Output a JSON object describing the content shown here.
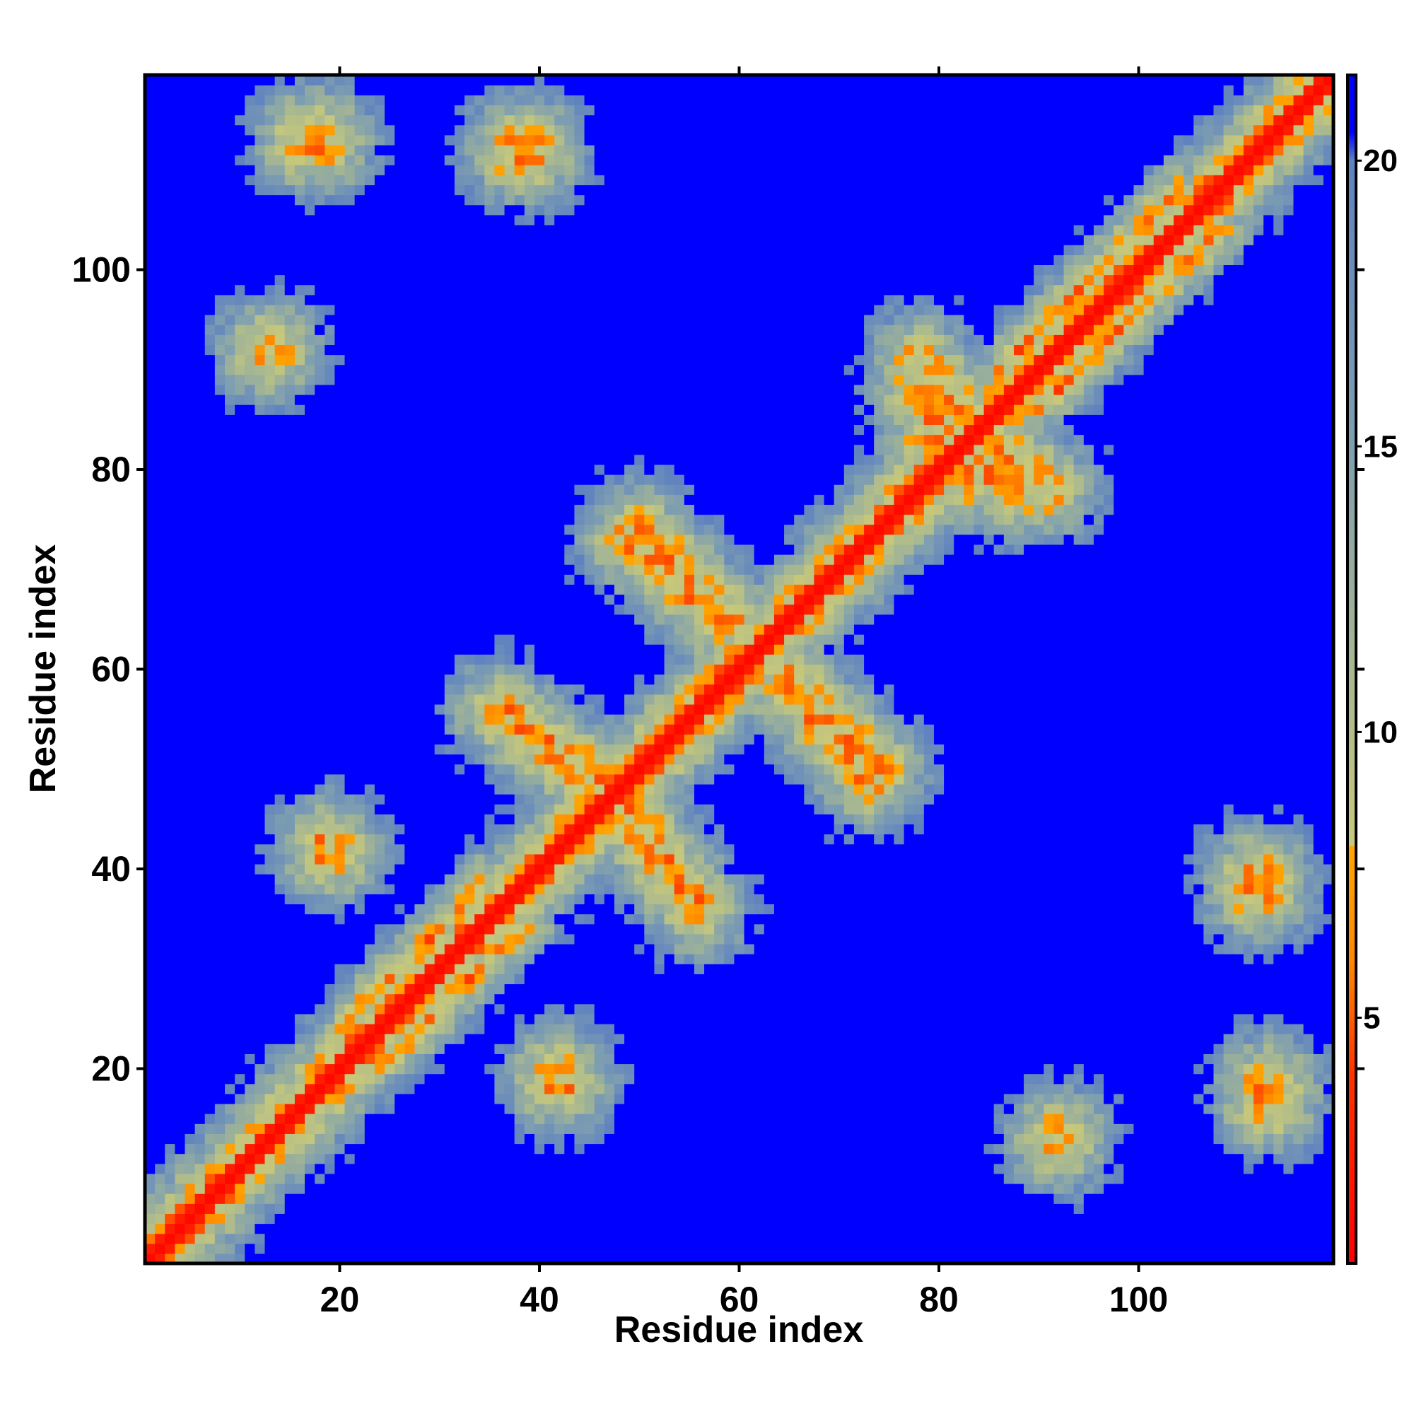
{
  "chart_data": {
    "type": "heatmap",
    "title": "",
    "xlabel": "Residue index",
    "ylabel": "Residue index",
    "n_residues": 119,
    "xlim": [
      0.5,
      119.5
    ],
    "ylim": [
      0.5,
      119.5
    ],
    "x_ticks": [
      20,
      40,
      60,
      80,
      100
    ],
    "y_ticks": [
      20,
      40,
      60,
      80,
      100
    ],
    "x_tick_labels": [
      "20",
      "40",
      "60",
      "80",
      "100"
    ],
    "y_tick_labels": [
      "20",
      "40",
      "60",
      "80",
      "100"
    ],
    "colorbar": {
      "range": [
        0.7,
        21.5
      ],
      "ticks": [
        5,
        10,
        15,
        20
      ],
      "tick_labels": [
        "5",
        "10",
        "15",
        "20"
      ],
      "stops": [
        {
          "value": 0.7,
          "color": "#ff0000"
        },
        {
          "value": 4.0,
          "color": "#ff3300"
        },
        {
          "value": 6.0,
          "color": "#ff8800"
        },
        {
          "value": 8.0,
          "color": "#ffa500"
        },
        {
          "value": 8.01,
          "color": "#c8c87a"
        },
        {
          "value": 11.0,
          "color": "#a8b890"
        },
        {
          "value": 15.0,
          "color": "#7f9fb0"
        },
        {
          "value": 20.0,
          "color": "#5f82c0"
        },
        {
          "value": 20.5,
          "color": "#0000ff"
        },
        {
          "value": 21.5,
          "color": "#0000ff"
        }
      ]
    },
    "value_description": "Pairwise residue distance matrix (symmetric). Diagonal ~1-3 (red), contact blobs ~6-8 (orange), near shell 10-19 (green-gray/steel), far pairs >20 (blue).",
    "contact_features": [
      {
        "kind": "diagonal",
        "range": [
          1,
          119
        ],
        "value": 1.5
      },
      {
        "kind": "parallel_band",
        "range": [
          20,
          34
        ],
        "offset": 4,
        "value": 6.5
      },
      {
        "kind": "parallel_band",
        "range": [
          86,
          104
        ],
        "offset": 4,
        "value": 6.5
      },
      {
        "kind": "antiparallel_strand",
        "from": [
          45,
          50
        ],
        "to": [
          56,
          36
        ],
        "value": 6.8
      },
      {
        "kind": "antiparallel_strand",
        "from": [
          50,
          74
        ],
        "to": [
          58,
          65
        ],
        "value": 6.8
      },
      {
        "kind": "antiparallel_strand",
        "from": [
          65,
          59
        ],
        "to": [
          73,
          49
        ],
        "value": 6.8
      },
      {
        "kind": "antiparallel_strand",
        "from": [
          78,
          88
        ],
        "to": [
          83,
          79
        ],
        "value": 7.0
      },
      {
        "kind": "antiparallel_strand",
        "from": [
          84,
          84
        ],
        "to": [
          91,
          78
        ],
        "value": 7.0
      },
      {
        "kind": "contact_blob",
        "center": [
          17,
          113
        ],
        "value": 7.0
      },
      {
        "kind": "contact_blob",
        "center": [
          38,
          112
        ],
        "value": 7.0
      },
      {
        "kind": "contact_blob",
        "center": [
          19,
          42
        ],
        "value": 7.2
      },
      {
        "kind": "contact_blob",
        "center": [
          112,
          39
        ],
        "value": 7.2
      },
      {
        "kind": "contact_blob",
        "center": [
          113,
          18
        ],
        "value": 7.0
      },
      {
        "kind": "contact_blob",
        "center": [
          42,
          19
        ],
        "value": 7.2
      },
      {
        "kind": "contact_blob",
        "center": [
          13,
          92
        ],
        "value": 7.6
      }
    ]
  }
}
